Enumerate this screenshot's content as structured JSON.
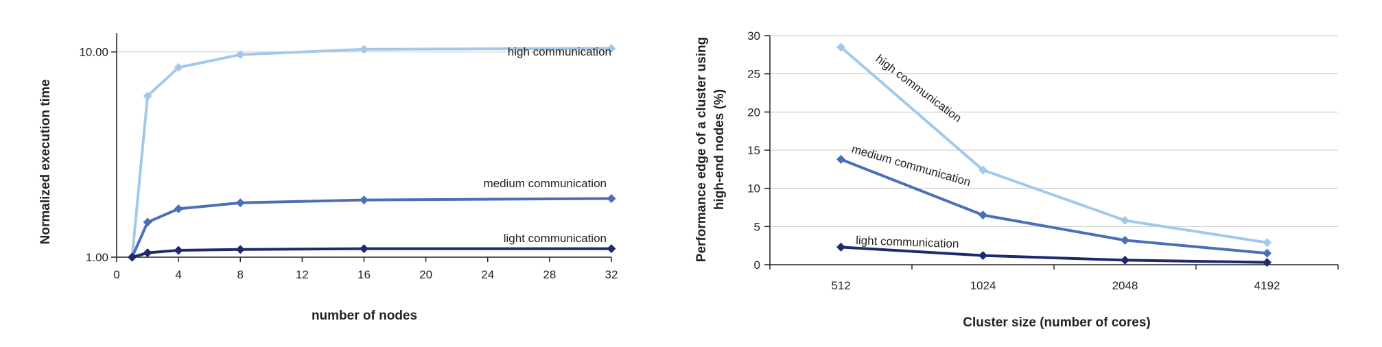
{
  "colors": {
    "light": "#1f2a6e",
    "medium": "#4a6fb8",
    "high": "#a3c9ea",
    "axis": "#222222",
    "grid": "#c8c8c8"
  },
  "chart_data": [
    {
      "type": "line",
      "xlabel": "number of nodes",
      "ylabel": "Normalized execution time",
      "x_scale": "linear",
      "y_scale": "log",
      "xlim": [
        0,
        32
      ],
      "ylim": [
        1,
        12
      ],
      "x_ticks": [
        0,
        4,
        8,
        12,
        16,
        20,
        24,
        28,
        32
      ],
      "x_tick_labels": [
        "0",
        "4",
        "8",
        "12",
        "16",
        "20",
        "24",
        "28",
        "32"
      ],
      "y_ticks": [
        1,
        10
      ],
      "y_tick_labels": [
        "1.00",
        "10.00"
      ],
      "grid": "major y only",
      "legend": "inline labels at right end of each line",
      "series": [
        {
          "name": "high communication",
          "color_key": "high",
          "x": [
            1,
            2,
            4,
            8,
            16,
            32
          ],
          "y": [
            1.0,
            6.1,
            8.4,
            9.7,
            10.3,
            10.4
          ]
        },
        {
          "name": "medium communication",
          "color_key": "medium",
          "x": [
            1,
            2,
            4,
            8,
            16,
            32
          ],
          "y": [
            1.0,
            1.48,
            1.72,
            1.84,
            1.9,
            1.93
          ]
        },
        {
          "name": "light communication",
          "color_key": "light",
          "x": [
            1,
            2,
            4,
            8,
            16,
            32
          ],
          "y": [
            1.0,
            1.05,
            1.08,
            1.09,
            1.1,
            1.1
          ]
        }
      ]
    },
    {
      "type": "line",
      "xlabel": "Cluster size (number of cores)",
      "ylabel_line1": "Performance edge of a cluster using",
      "ylabel_line2": "high-end nodes (%)",
      "categories": [
        "512",
        "1024",
        "2048",
        "4192"
      ],
      "ylim": [
        0,
        30
      ],
      "y_ticks": [
        0,
        5,
        10,
        15,
        20,
        25,
        30
      ],
      "y_tick_labels": [
        "0",
        "5",
        "10",
        "15",
        "20",
        "25",
        "30"
      ],
      "grid": "major y",
      "legend": "inline rotated labels along each line",
      "series": [
        {
          "name": "high communication",
          "color_key": "high",
          "values": [
            28.5,
            12.4,
            5.8,
            2.9
          ]
        },
        {
          "name": "medium communication",
          "color_key": "medium",
          "values": [
            13.8,
            6.5,
            3.2,
            1.5
          ]
        },
        {
          "name": "light communication",
          "color_key": "light",
          "values": [
            2.3,
            1.2,
            0.6,
            0.3
          ]
        }
      ]
    }
  ]
}
